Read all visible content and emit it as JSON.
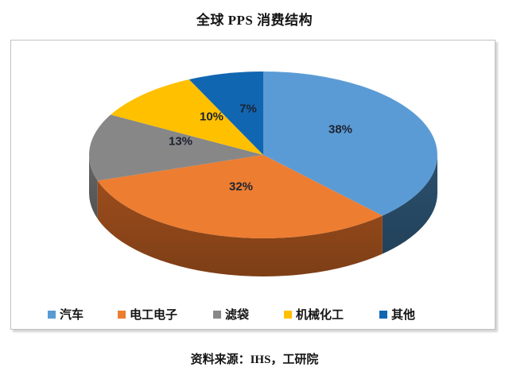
{
  "title": "全球 PPS 消费结构",
  "source": "资料来源：IHS，工研院",
  "chart_data": {
    "type": "pie",
    "style": "3d",
    "title": "全球 PPS 消费结构",
    "start_angle_deg": 0,
    "direction": "clockwise",
    "legend_position": "bottom",
    "values_are_percent": true,
    "label_color": "#1c2330",
    "slices": [
      {
        "label": "汽车",
        "value": 38,
        "display": "38%",
        "color": "#5B9BD5",
        "side_color": "#2B516F"
      },
      {
        "label": "电工电子",
        "value": 32,
        "display": "32%",
        "color": "#ED7D31",
        "side_color": "#9C4D1C"
      },
      {
        "label": "滤袋",
        "value": 13,
        "display": "13%",
        "color": "#878787",
        "side_color": "#666666"
      },
      {
        "label": "机械化工",
        "value": 10,
        "display": "10%",
        "color": "#FFC000",
        "side_color": "#B28600"
      },
      {
        "label": "其他",
        "value": 7,
        "display": "7%",
        "color": "#1166B2",
        "side_color": "#0C4B85"
      }
    ]
  }
}
